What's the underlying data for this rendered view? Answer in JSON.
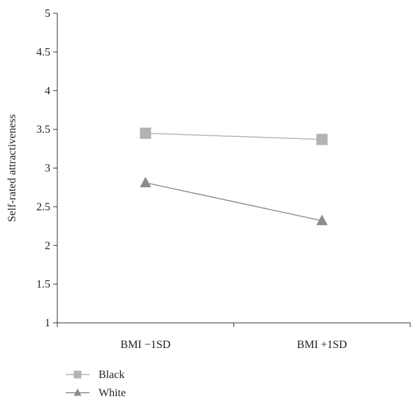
{
  "chart_data": {
    "type": "line",
    "title": "",
    "xlabel": "",
    "ylabel": "Self-rated attractiveness",
    "categories": [
      "BMI −1SD",
      "BMI +1SD"
    ],
    "ylim": [
      1,
      5
    ],
    "yticks": [
      "1",
      "1.5",
      "2",
      "2.5",
      "3",
      "3.5",
      "4",
      "4.5",
      "5"
    ],
    "grid": false,
    "legend_position": "bottom-left",
    "series": [
      {
        "name": "Black",
        "values": [
          3.45,
          3.37
        ],
        "color": "#b3b3b3",
        "marker": "square"
      },
      {
        "name": "White",
        "values": [
          2.81,
          2.32
        ],
        "color": "#8c8c8c",
        "marker": "triangle"
      }
    ]
  }
}
